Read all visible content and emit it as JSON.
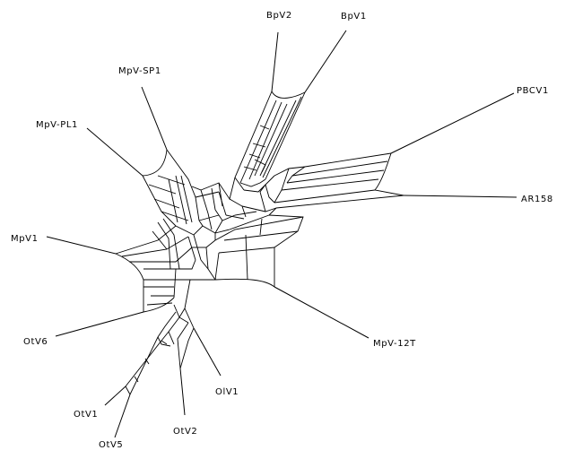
{
  "network": {
    "taxa": [
      {
        "key": "bpv2",
        "label": "BpV2"
      },
      {
        "key": "bpv1",
        "label": "BpV1"
      },
      {
        "key": "mpvsp1",
        "label": "MpV-SP1"
      },
      {
        "key": "pbcv1",
        "label": "PBCV1"
      },
      {
        "key": "mpvpl1",
        "label": "MpV-PL1"
      },
      {
        "key": "ar158",
        "label": "AR158"
      },
      {
        "key": "mpv1",
        "label": "MpV1"
      },
      {
        "key": "mpv12t",
        "label": "MpV-12T"
      },
      {
        "key": "otv6",
        "label": "OtV6"
      },
      {
        "key": "olv1",
        "label": "OlV1"
      },
      {
        "key": "otv1",
        "label": "OtV1"
      },
      {
        "key": "otv2",
        "label": "OtV2"
      },
      {
        "key": "otv5",
        "label": "OtV5"
      }
    ]
  }
}
